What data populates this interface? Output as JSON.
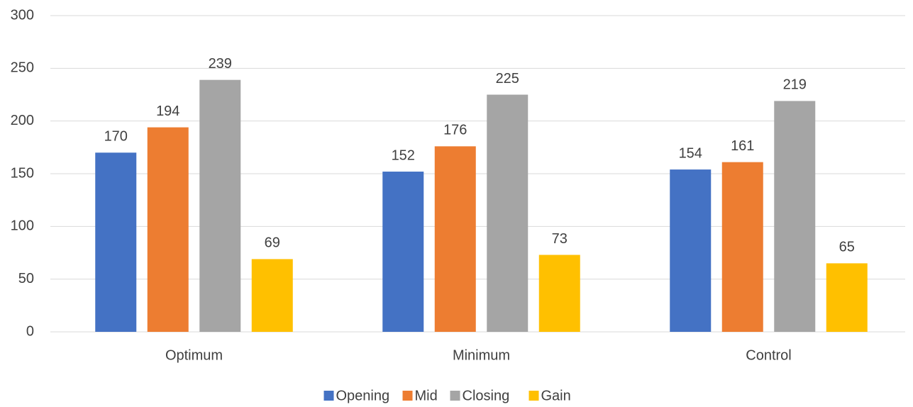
{
  "chart_data": {
    "type": "bar",
    "categories": [
      "Optimum",
      "Minimum",
      "Control"
    ],
    "series": [
      {
        "name": "Opening",
        "color": "#4472c4",
        "values": [
          170,
          152,
          154
        ]
      },
      {
        "name": "Mid",
        "color": "#ed7d31",
        "values": [
          194,
          176,
          161
        ]
      },
      {
        "name": "Closing",
        "color": "#a5a5a5",
        "values": [
          239,
          225,
          219
        ]
      },
      {
        "name": "Gain",
        "color": "#ffc000",
        "values": [
          69,
          73,
          65
        ]
      }
    ],
    "ylim": [
      0,
      300
    ],
    "yticks": [
      0,
      50,
      100,
      150,
      200,
      250,
      300
    ],
    "grid": true,
    "legend": "bottom"
  }
}
